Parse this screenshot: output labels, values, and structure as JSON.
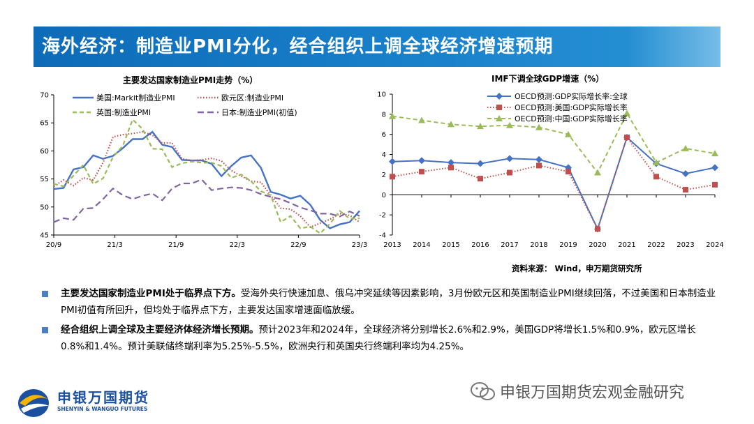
{
  "page_title": "海外经济：制造业PMI分化，经合组织上调全球经济增速预期",
  "source": "资料来源： Wind，申万期货研究所",
  "bullets": [
    {
      "bold": "主要发达国家制造业PMI处于临界点下方。",
      "text": "受海外央行快速加息、俄乌冲突延续等因素影响，3月份欧元区和英国制造业PMI继续回落，不过美国和日本制造业PMI初值有所回升，但均处于临界点下方，主要发达国家增速面临放缓。"
    },
    {
      "bold": "经合组织上调全球及主要经济体经济增长预期。",
      "text": "预计2023年和2024年，全球经济将分别增长2.6%和2.9%，美国GDP将增长1.5%和0.9%，欧元区增长0.8%和1.4%。预计美联储终端利率为5.25%-5.5%，欧洲央行和英国央行终端利率均为4.25%。"
    }
  ],
  "logo": {
    "cn": "申银万国期货",
    "en": "SHENYIN & WANGUO FUTURES"
  },
  "wechat": "申银万国期货宏观金融研究",
  "colors": {
    "title_bar": "#1377c2",
    "bullet": "#4a7fc1"
  },
  "chart_data": [
    {
      "type": "line",
      "title": "主要发达国家制造业PMI走势（%）",
      "ylim": [
        45,
        70
      ],
      "yticks": [
        45,
        50,
        55,
        60,
        65,
        70
      ],
      "xtick_labels": [
        "20/9",
        "21/3",
        "21/9",
        "22/3",
        "22/9",
        "23/3"
      ],
      "legend_placement": "top",
      "grid": false,
      "series": [
        {
          "name": "美国:Markit制造业PMI",
          "color": "#4472c4",
          "dash": "solid",
          "values": [
            53.2,
            53.4,
            56.7,
            57.1,
            59.2,
            58.6,
            59.1,
            60.5,
            62.1,
            62.1,
            63.4,
            61.1,
            60.7,
            58.4,
            58.3,
            58.3,
            57.7,
            55.5,
            57.3,
            58.8,
            59.2,
            57.0,
            52.7,
            52.2,
            51.5,
            52.0,
            50.4,
            47.7,
            46.2,
            46.9,
            47.3,
            49.3
          ]
        },
        {
          "name": "欧元区:制造业PMI",
          "color": "#c0504d",
          "dash": "dot",
          "values": [
            53.7,
            54.8,
            53.8,
            55.2,
            54.8,
            57.9,
            62.5,
            62.9,
            63.1,
            63.4,
            62.8,
            61.4,
            61.4,
            58.6,
            58.3,
            58.4,
            58.7,
            58.2,
            56.5,
            55.5,
            54.6,
            54.4,
            52.1,
            49.8,
            49.6,
            48.4,
            46.4,
            47.1,
            47.8,
            48.8,
            48.5,
            47.3
          ]
        },
        {
          "name": "英国:制造业PMI",
          "color": "#9bbb59",
          "dash": "dash",
          "values": [
            54.1,
            53.7,
            55.6,
            57.5,
            54.1,
            55.1,
            58.9,
            60.9,
            65.6,
            63.9,
            60.4,
            60.3,
            57.1,
            57.8,
            58.1,
            57.9,
            57.9,
            57.3,
            55.2,
            55.8,
            54.6,
            52.8,
            52.1,
            47.3,
            48.4,
            46.2,
            46.5,
            45.3,
            47.0,
            49.3,
            47.9,
            48.0
          ]
        },
        {
          "name": "日本:制造业PMI(初值)",
          "color": "#8064a2",
          "dash": "longdash",
          "values": [
            47.3,
            48.0,
            47.7,
            49.7,
            49.8,
            51.4,
            53.3,
            52.1,
            51.4,
            52.0,
            52.4,
            51.2,
            53.3,
            54.2,
            54.2,
            54.9,
            53.0,
            53.3,
            53.5,
            53.4,
            53.0,
            52.3,
            51.8,
            51.4,
            50.7,
            49.9,
            49.4,
            48.8,
            48.8,
            48.3,
            49.2,
            48.4
          ]
        }
      ]
    },
    {
      "type": "line",
      "title": "IMF下调全球GDP增速（%）",
      "ylim": [
        -4,
        10
      ],
      "yticks": [
        -4,
        -2,
        0,
        2,
        4,
        6,
        8,
        10
      ],
      "x": [
        "2013",
        "2014",
        "2015",
        "2016",
        "2017",
        "2018",
        "2019",
        "2020",
        "2021",
        "2022",
        "2023",
        "2024"
      ],
      "legend_placement": "top-left",
      "grid": false,
      "series": [
        {
          "name": "OECD预测:GDP实际增长率:全球",
          "color": "#4472c4",
          "marker": "diamond",
          "values": [
            3.3,
            3.4,
            3.2,
            3.1,
            3.6,
            3.5,
            2.7,
            -3.4,
            5.7,
            3.1,
            2.1,
            2.7
          ]
        },
        {
          "name": "OECD预测:美国:GDP实际增长率",
          "color": "#c0504d",
          "marker": "square",
          "dash": "dot",
          "values": [
            1.8,
            2.3,
            2.7,
            1.6,
            2.2,
            2.9,
            2.3,
            -3.4,
            5.7,
            1.8,
            0.5,
            1.0
          ]
        },
        {
          "name": "OECD预测:中国:GDP实际增长率",
          "color": "#9bbb59",
          "marker": "triangle",
          "dash": "dash",
          "values": [
            7.8,
            7.4,
            7.0,
            6.8,
            6.9,
            6.7,
            6.0,
            2.2,
            8.1,
            3.2,
            4.6,
            4.1
          ]
        }
      ]
    }
  ]
}
